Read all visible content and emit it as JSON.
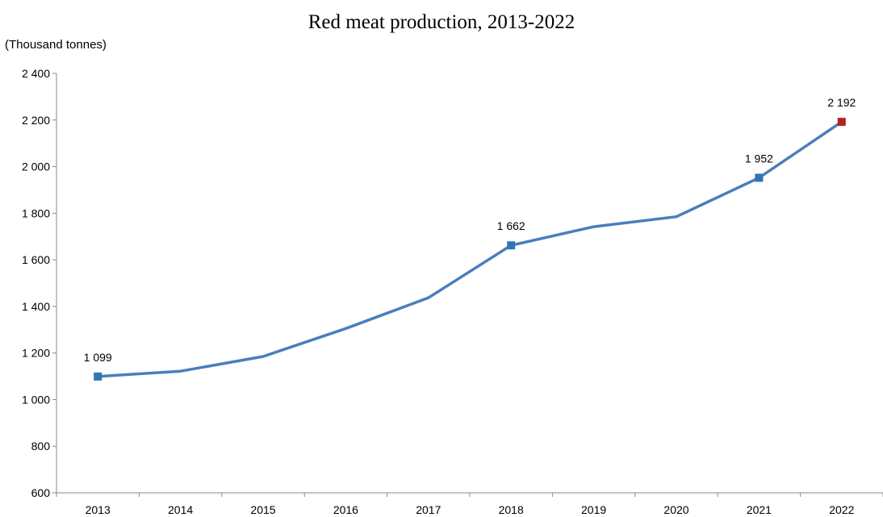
{
  "chart_data": {
    "type": "line",
    "title": "Red meat production, 2013-2022",
    "ylabel": "(Thousand tonnes)",
    "xlabel": "",
    "x": [
      "2013",
      "2014",
      "2015",
      "2016",
      "2017",
      "2018",
      "2019",
      "2020",
      "2021",
      "2022"
    ],
    "values": [
      1099,
      1122,
      1185,
      1305,
      1437,
      1662,
      1742,
      1785,
      1952,
      2192
    ],
    "ylim": [
      600,
      2400
    ],
    "yticks": [
      600,
      800,
      1000,
      1200,
      1400,
      1600,
      1800,
      2000,
      2200,
      2400
    ],
    "ytick_labels": [
      "600",
      "800",
      "1 000",
      "1 200",
      "1 400",
      "1 600",
      "1 800",
      "2 000",
      "2 200",
      "2 400"
    ],
    "annotations": [
      {
        "x": "2013",
        "label": "1 099"
      },
      {
        "x": "2018",
        "label": "1 662"
      },
      {
        "x": "2021",
        "label": "1 952"
      },
      {
        "x": "2022",
        "label": "2 192"
      }
    ],
    "grid": false,
    "colors": {
      "line": "#4a7ebb",
      "marker": "#2e75b6",
      "highlight_marker": "#b22222",
      "axis": "#888888"
    }
  }
}
